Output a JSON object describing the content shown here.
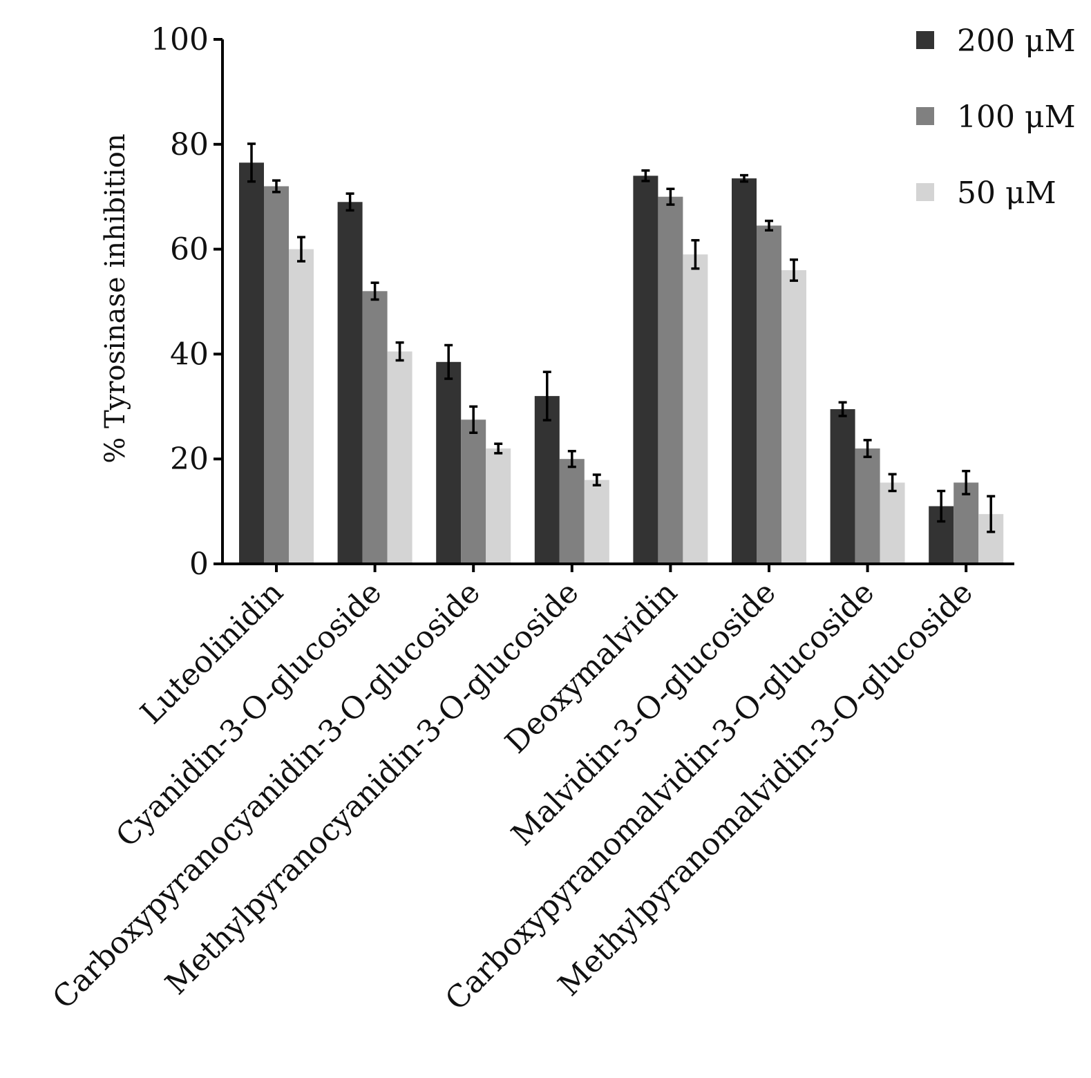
{
  "chart_data": {
    "type": "bar",
    "title": "",
    "xlabel": "",
    "ylabel": "% Tyrosinase inhibition",
    "ylim": [
      0,
      100
    ],
    "yticks": [
      0,
      20,
      40,
      60,
      80,
      100
    ],
    "grid": false,
    "legend_position": "top-right",
    "categories": [
      "Luteolinidin",
      "Cyanidin-3-O-glucoside",
      "Carboxypyranocyanidin-3-O-glucoside",
      "Methylpyranocyanidin-3-O-glucoside",
      "Deoxymalvidin",
      "Malvidin-3-O-glucoside",
      "Carboxypyranomalvidin-3-O-glucoside",
      "Methylpyranomalvidin-3-O-glucoside"
    ],
    "series": [
      {
        "name": "200 μM",
        "color": "#333333",
        "values": [
          76.5,
          69.0,
          38.5,
          32.0,
          74.0,
          73.5,
          29.5,
          11.0
        ],
        "errors": [
          3.6,
          1.6,
          3.2,
          4.6,
          1.0,
          0.6,
          1.3,
          2.9
        ]
      },
      {
        "name": "100 μM",
        "color": "#808080",
        "values": [
          72.0,
          52.0,
          27.5,
          20.0,
          70.0,
          64.5,
          22.0,
          15.5
        ],
        "errors": [
          1.1,
          1.6,
          2.5,
          1.5,
          1.5,
          0.9,
          1.6,
          2.2
        ]
      },
      {
        "name": "50 μM",
        "color": "#d4d4d4",
        "values": [
          60.0,
          40.5,
          22.0,
          16.0,
          59.0,
          56.0,
          15.5,
          9.5
        ],
        "errors": [
          2.3,
          1.7,
          0.9,
          1.0,
          2.7,
          2.0,
          1.6,
          3.4
        ]
      }
    ]
  }
}
